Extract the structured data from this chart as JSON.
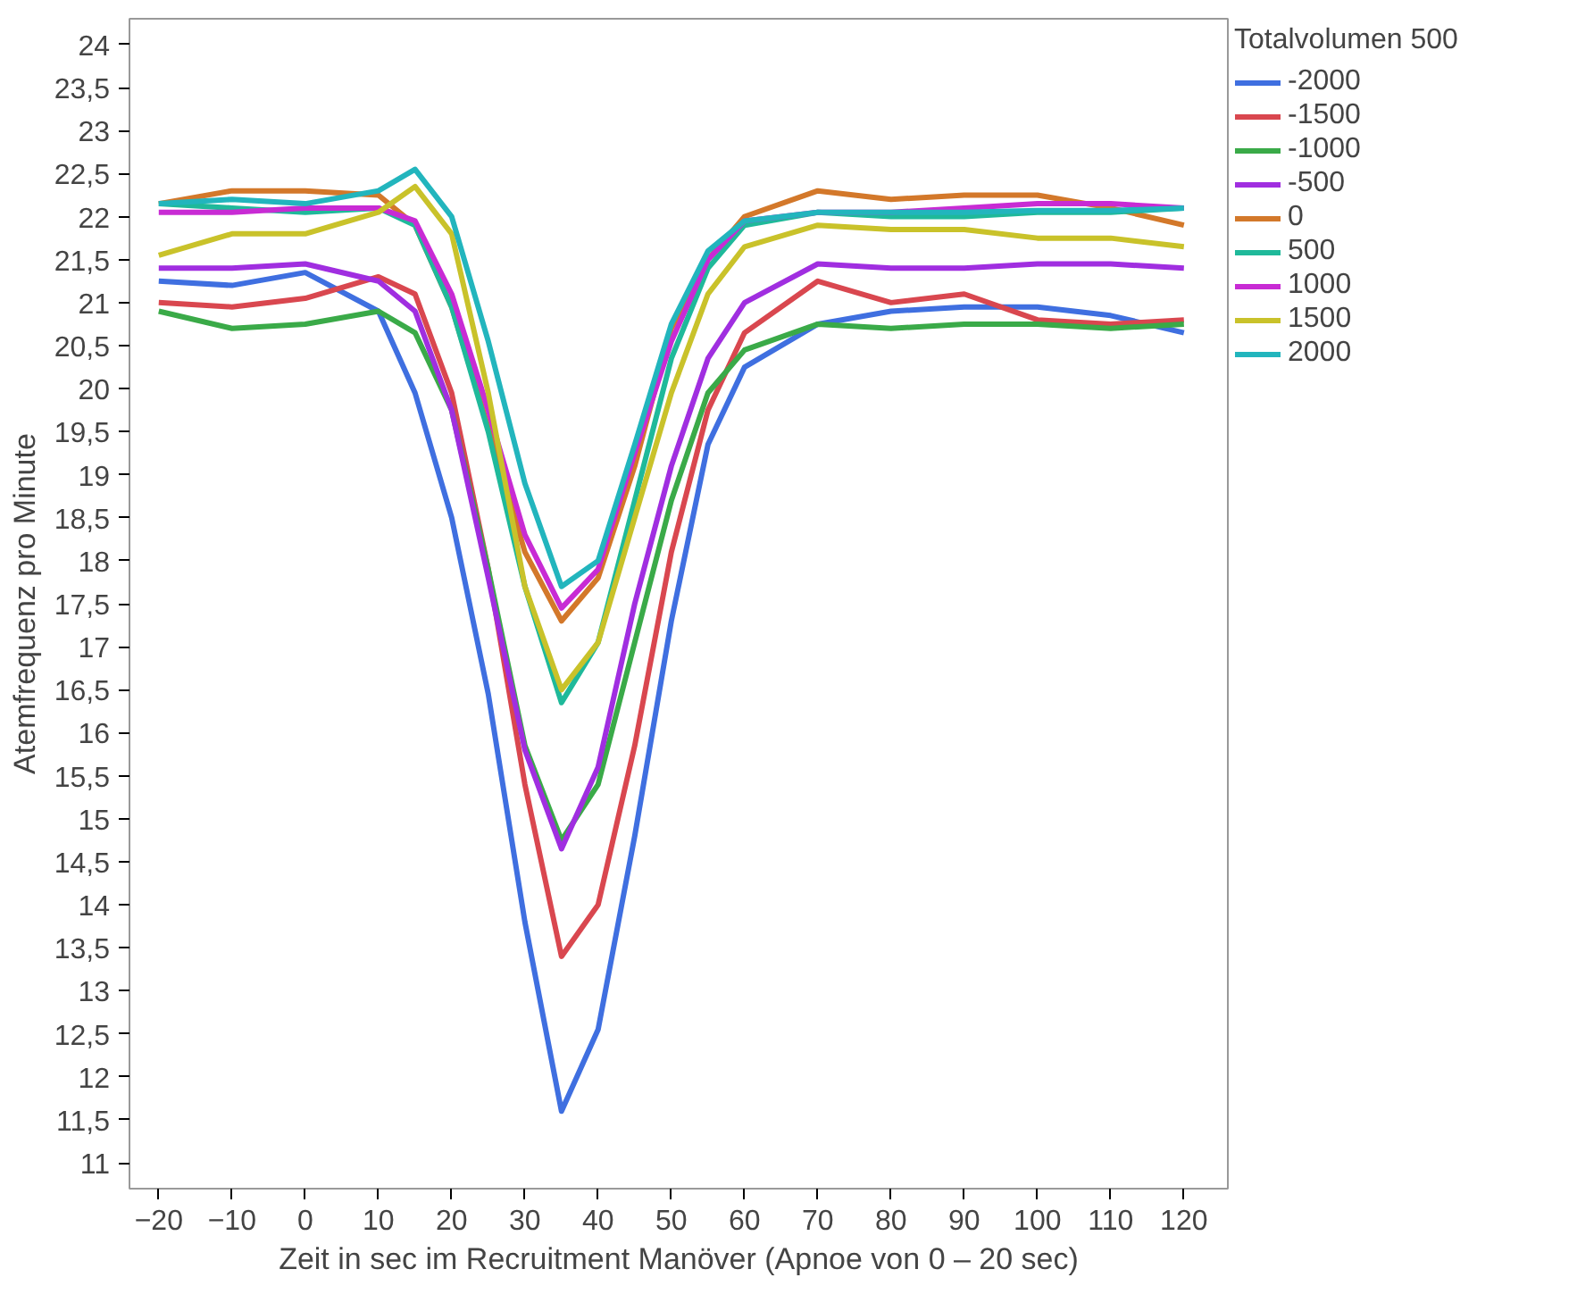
{
  "chart_data": {
    "type": "line",
    "xlabel": "Zeit in sec im Recruitment Manöver (Apnoe von 0 – 20 sec)",
    "ylabel": "Atemfrequenz pro Minute",
    "legend_title": "Totalvolumen 500",
    "legend": "right",
    "grid": false,
    "marker": "none",
    "line_style": "solid",
    "x": [
      -20,
      -10,
      0,
      10,
      15,
      20,
      25,
      30,
      35,
      40,
      45,
      50,
      55,
      60,
      70,
      80,
      90,
      100,
      110,
      120
    ],
    "xlim": [
      -24,
      126
    ],
    "ylim": [
      10.7,
      24.3
    ],
    "xticks": [
      -20,
      -10,
      0,
      10,
      20,
      30,
      40,
      50,
      60,
      70,
      80,
      90,
      100,
      110,
      120
    ],
    "yticks": [
      11,
      {
        "value": 11.5,
        "label": "11,5"
      },
      12,
      {
        "value": 12.5,
        "label": "12,5"
      },
      13,
      {
        "value": 13.5,
        "label": "13,5"
      },
      14,
      {
        "value": 14.5,
        "label": "14,5"
      },
      15,
      {
        "value": 15.5,
        "label": "15,5"
      },
      16,
      {
        "value": 16.5,
        "label": "16,5"
      },
      17,
      {
        "value": 17.5,
        "label": "17,5"
      },
      18,
      {
        "value": 18.5,
        "label": "18,5"
      },
      19,
      {
        "value": 19.5,
        "label": "19,5"
      },
      20,
      {
        "value": 20.5,
        "label": "20,5"
      },
      21,
      {
        "value": 21.5,
        "label": "21,5"
      },
      22,
      {
        "value": 22.5,
        "label": "22,5"
      },
      23,
      {
        "value": 23.5,
        "label": "23,5"
      },
      24
    ],
    "series": [
      {
        "name": "-2000",
        "color": "#3f6fe0",
        "values": [
          21.25,
          21.2,
          21.35,
          20.9,
          19.95,
          18.5,
          16.45,
          13.8,
          11.6,
          12.55,
          14.8,
          17.3,
          19.35,
          20.25,
          20.75,
          20.9,
          20.95,
          20.95,
          20.85,
          20.65
        ]
      },
      {
        "name": "-1500",
        "color": "#d9474f",
        "values": [
          21.0,
          20.95,
          21.05,
          21.3,
          21.1,
          19.95,
          17.9,
          15.4,
          13.4,
          14.0,
          15.85,
          18.1,
          19.75,
          20.65,
          21.25,
          21.0,
          21.1,
          20.8,
          20.75,
          20.8
        ]
      },
      {
        "name": "-1000",
        "color": "#3aaa48",
        "values": [
          20.9,
          20.7,
          20.75,
          20.9,
          20.65,
          19.75,
          17.9,
          15.85,
          14.75,
          15.4,
          17.05,
          18.7,
          19.95,
          20.45,
          20.75,
          20.7,
          20.75,
          20.75,
          20.7,
          20.75
        ]
      },
      {
        "name": "-500",
        "color": "#a02ee0",
        "values": [
          21.4,
          21.4,
          21.45,
          21.25,
          20.9,
          19.75,
          17.8,
          15.8,
          14.65,
          15.6,
          17.5,
          19.1,
          20.35,
          21.0,
          21.45,
          21.4,
          21.4,
          21.45,
          21.45,
          21.4
        ]
      },
      {
        "name": "0",
        "color": "#d3782a",
        "values": [
          22.15,
          22.3,
          22.3,
          22.25,
          21.9,
          20.95,
          19.55,
          18.1,
          17.3,
          17.8,
          19.1,
          20.7,
          21.5,
          22.0,
          22.3,
          22.2,
          22.25,
          22.25,
          22.1,
          21.9
        ]
      },
      {
        "name": "500",
        "color": "#1fb99a",
        "values": [
          22.15,
          22.1,
          22.05,
          22.1,
          21.9,
          20.95,
          19.5,
          17.7,
          16.35,
          17.05,
          18.7,
          20.35,
          21.4,
          21.9,
          22.05,
          22.0,
          22.0,
          22.05,
          22.05,
          22.1
        ]
      },
      {
        "name": "1000",
        "color": "#c82bd4",
        "values": [
          22.05,
          22.05,
          22.1,
          22.1,
          21.95,
          21.1,
          19.75,
          18.3,
          17.45,
          17.9,
          19.25,
          20.55,
          21.5,
          21.95,
          22.05,
          22.05,
          22.1,
          22.15,
          22.15,
          22.1
        ]
      },
      {
        "name": "1500",
        "color": "#c9c22a",
        "values": [
          21.55,
          21.8,
          21.8,
          22.05,
          22.35,
          21.8,
          19.95,
          17.7,
          16.5,
          17.05,
          18.5,
          19.95,
          21.1,
          21.65,
          21.9,
          21.85,
          21.85,
          21.75,
          21.75,
          21.65
        ]
      },
      {
        "name": "2000",
        "color": "#22b5bd",
        "values": [
          22.15,
          22.2,
          22.15,
          22.3,
          22.55,
          22.0,
          20.55,
          18.9,
          17.7,
          18.0,
          19.35,
          20.75,
          21.6,
          21.95,
          22.05,
          22.05,
          22.05,
          22.07,
          22.07,
          22.1
        ]
      }
    ]
  }
}
